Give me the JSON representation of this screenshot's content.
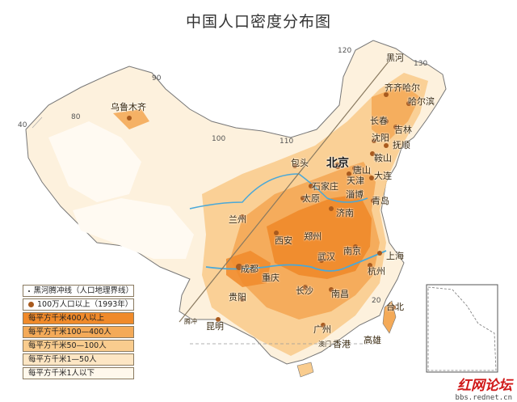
{
  "title": "中国人口密度分布图",
  "legend": {
    "line_label": "黑河腾冲线（人口地理界线）",
    "city_label": "100万人口以上（1993年）",
    "density_classes": [
      {
        "label": "每平方千米400人以上",
        "color": "#f08a2a"
      },
      {
        "label": "每平方千米100—400人",
        "color": "#f4aa58"
      },
      {
        "label": "每平方千米50—100人",
        "color": "#f9cc8e"
      },
      {
        "label": "每平方千米1—50人",
        "color": "#fde6c4"
      },
      {
        "label": "每平方千米1人以下",
        "color": "#fff8ec"
      }
    ]
  },
  "coordinates": {
    "lon_40": "40",
    "lon_80": "80",
    "lon_90": "90",
    "lon_100": "100",
    "lon_110": "110",
    "lon_120": "120",
    "lon_130": "130",
    "lat_20": "20"
  },
  "cities": {
    "beijing": "北京",
    "wulumuqi": "乌鲁木齐",
    "heilongjiang_heihe": "黑河",
    "qiqihaer": "齐齐哈尔",
    "haerbin": "哈尔滨",
    "changchun": "长春",
    "jilin": "吉林",
    "shenyang": "沈阳",
    "fushun": "抚顺",
    "anshan": "鞍山",
    "dalian": "大连",
    "tangshan": "唐山",
    "tianjin": "天津",
    "baotou": "包头",
    "shijiazhuang": "石家庄",
    "taiyuan": "太原",
    "zibo": "淄博",
    "qingdao": "青岛",
    "jinan": "济南",
    "lanzhou": "兰州",
    "xian": "西安",
    "zhengzhou": "郑州",
    "nanjing": "南京",
    "shanghai": "上海",
    "hangzhou": "杭州",
    "wuhan": "武汉",
    "chengdu": "成都",
    "chongqing": "重庆",
    "changsha": "长沙",
    "nanchang": "南昌",
    "guiyang": "贵阳",
    "kunming": "昆明",
    "tengchong": "腾冲",
    "guangzhou": "广州",
    "taibei": "台北",
    "gaoxiong": "高雄",
    "hongkong": "香港",
    "aomen": "澳门"
  },
  "watermark": {
    "logo": "红网论坛",
    "url": "bbs.rednet.cn"
  },
  "colors": {
    "line": "#8a7a60",
    "border": "#777777",
    "water": "#4aa8d8"
  }
}
